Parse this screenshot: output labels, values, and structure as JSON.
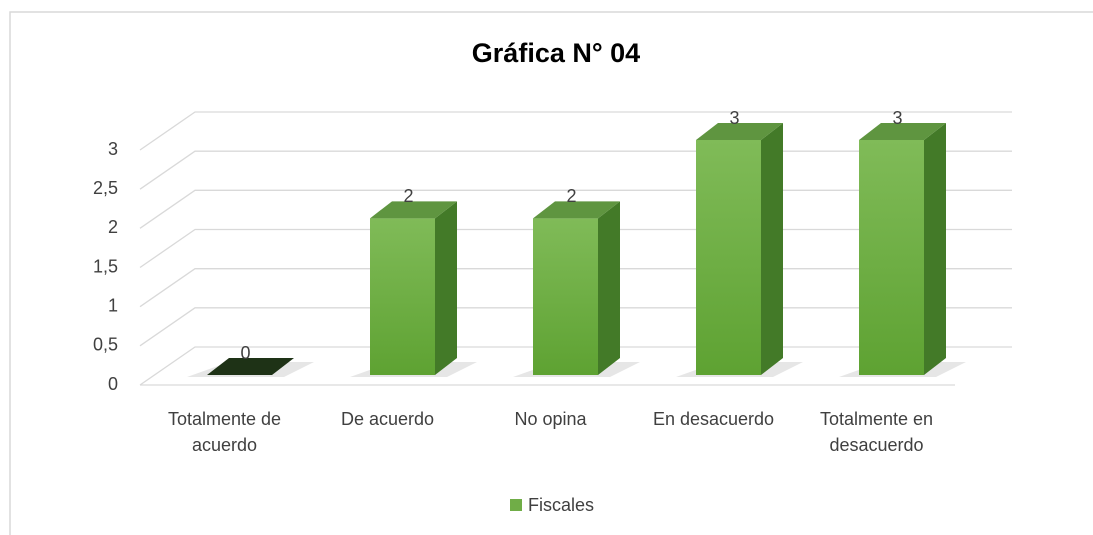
{
  "chart_data": {
    "type": "bar3d",
    "title": "Gráfica N° 04",
    "categories": [
      "Totalmente de acuerdo",
      "De acuerdo",
      "No opina",
      "En desacuerdo",
      "Totalmente en desacuerdo"
    ],
    "series": [
      {
        "name": "Fiscales",
        "color": "#70ad47",
        "values": [
          0,
          2,
          2,
          3,
          3
        ]
      }
    ],
    "ylim": [
      0,
      3
    ],
    "yticks": [
      0,
      {
        "value": 0.5,
        "label": "0,5"
      },
      1,
      {
        "value": 1.5,
        "label": "1,5"
      },
      2,
      {
        "value": 2.5,
        "label": "2,5"
      },
      3
    ],
    "grid": true,
    "legend": "bottom"
  }
}
